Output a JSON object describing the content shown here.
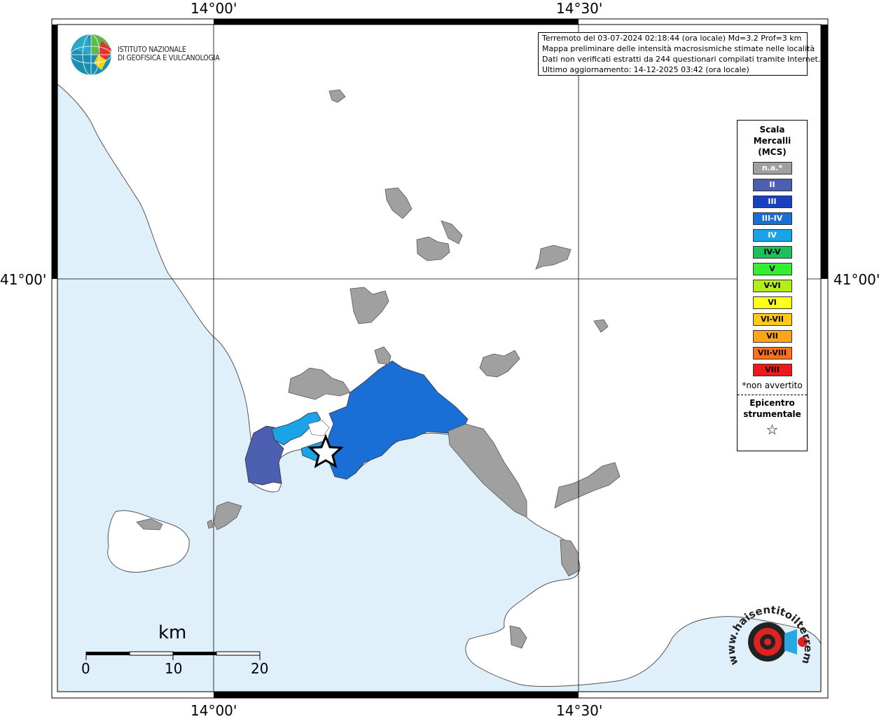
{
  "map": {
    "lon_labels": [
      "14°00'",
      "14°30'"
    ],
    "lat_labels": [
      "41°00'"
    ]
  },
  "header": {
    "logo": {
      "line1": "ISTITUTO NAZIONALE",
      "line2": "DI GEOFISICA E VULCANOLOGIA"
    },
    "info_lines": [
      "Terremoto del 03-07-2024 02:18:44 (ora locale) Md=3.2 Prof=3 km",
      "Mappa preliminare delle intensità macrosismiche stimate nelle località",
      "Dati non verificati estratti da 244 questionari compilati tramite Internet.",
      "Ultimo aggiornamento: 14-12-2025 03:42 (ora locale)"
    ]
  },
  "legend": {
    "title_lines": [
      "Scala",
      "Mercalli",
      "(MCS)"
    ],
    "items": [
      {
        "label": "n.a.*",
        "color": "#a0a0a0",
        "text_color": "#ffffff"
      },
      {
        "label": "II",
        "color": "#4d5fb0",
        "text_color": "#ffffff"
      },
      {
        "label": "III",
        "color": "#1a3fbf",
        "text_color": "#ffffff"
      },
      {
        "label": "III-IV",
        "color": "#1a6fd6",
        "text_color": "#ffffff"
      },
      {
        "label": "IV",
        "color": "#1aa3e6",
        "text_color": "#ffffff"
      },
      {
        "label": "IV-V",
        "color": "#19c35a",
        "text_color": "#000000"
      },
      {
        "label": "V",
        "color": "#33ee33",
        "text_color": "#000000"
      },
      {
        "label": "V-VI",
        "color": "#b4ee1a",
        "text_color": "#000000"
      },
      {
        "label": "VI",
        "color": "#ffff1a",
        "text_color": "#000000"
      },
      {
        "label": "VI-VII",
        "color": "#ffc81a",
        "text_color": "#000000"
      },
      {
        "label": "VII",
        "color": "#ffa31a",
        "text_color": "#000000"
      },
      {
        "label": "VII-VIII",
        "color": "#ff701a",
        "text_color": "#000000"
      },
      {
        "label": "VIII",
        "color": "#ee1a1a",
        "text_color": "#000000"
      }
    ],
    "note": "*non avvertito",
    "epicenter_lines": [
      "Epicentro",
      "strumentale"
    ],
    "epicenter_symbol": "☆"
  },
  "scale_bar": {
    "unit": "km",
    "ticks": [
      "0",
      "10",
      "20"
    ]
  },
  "watermark": {
    "text": "www.haisentitoilterremoto.it"
  },
  "colors": {
    "sea": "#dff0fb",
    "land": "#ffffff",
    "unfelt": "#a0a0a0",
    "intensity_II": "#4d5fb0",
    "intensity_III_IV": "#1a6fd6",
    "intensity_IV": "#1aa3e6"
  }
}
